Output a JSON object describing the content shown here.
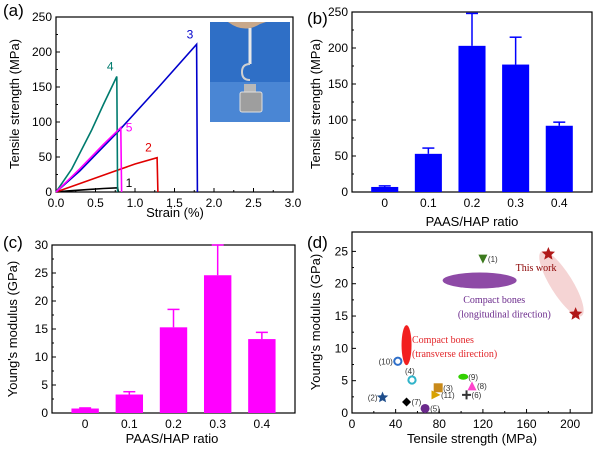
{
  "chart_data": [
    {
      "panel": "(a)",
      "type": "line",
      "xlabel": "Strain (%)",
      "ylabel": "Tensile strength (MPa)",
      "xlim": [
        0,
        3.0
      ],
      "ylim": [
        0,
        250
      ],
      "xticks": [
        "0.0",
        "0.5",
        "1.0",
        "1.5",
        "2.0",
        "2.5",
        "3.0"
      ],
      "yticks": [
        "0",
        "50",
        "100",
        "150",
        "200",
        "250"
      ],
      "series": [
        {
          "name": "1",
          "color": "#000000",
          "points": [
            [
              0,
              0
            ],
            [
              0.15,
              1.5
            ],
            [
              0.4,
              3.5
            ],
            [
              0.6,
              5
            ],
            [
              0.78,
              6
            ],
            [
              0.79,
              0
            ]
          ]
        },
        {
          "name": "2",
          "color": "#e00000",
          "points": [
            [
              0,
              0
            ],
            [
              0.3,
              12
            ],
            [
              0.7,
              28
            ],
            [
              1.0,
              40
            ],
            [
              1.28,
              49
            ],
            [
              1.29,
              0
            ]
          ]
        },
        {
          "name": "3",
          "color": "#0000cc",
          "points": [
            [
              0,
              0
            ],
            [
              0.3,
              30
            ],
            [
              0.8,
              88
            ],
            [
              1.3,
              150
            ],
            [
              1.78,
              211
            ],
            [
              1.79,
              0
            ]
          ]
        },
        {
          "name": "4",
          "color": "#007b6e",
          "points": [
            [
              0,
              0
            ],
            [
              0.2,
              33
            ],
            [
              0.45,
              88
            ],
            [
              0.6,
              125
            ],
            [
              0.77,
              165
            ],
            [
              0.78,
              0
            ]
          ]
        },
        {
          "name": "5",
          "color": "#ff00ff",
          "points": [
            [
              0,
              0
            ],
            [
              0.3,
              33
            ],
            [
              0.6,
              68
            ],
            [
              0.82,
              92
            ],
            [
              0.83,
              0
            ]
          ]
        }
      ]
    },
    {
      "panel": "(b)",
      "type": "bar",
      "xlabel": "PAAS/HAP ratio",
      "ylabel": "Tensile strength (MPa)",
      "categories": [
        "0",
        "0.1",
        "0.2",
        "0.3",
        "0.4"
      ],
      "values": [
        7,
        53,
        203,
        177,
        92
      ],
      "errors": [
        1.5,
        8,
        45,
        38,
        5
      ],
      "ylim": [
        0,
        250
      ],
      "yticks": [
        "0",
        "50",
        "100",
        "150",
        "200",
        "250"
      ],
      "color": "#0000ff"
    },
    {
      "panel": "(c)",
      "type": "bar",
      "xlabel": "PAAS/HAP ratio",
      "ylabel": "Young's modulus (GPa)",
      "categories": [
        "0",
        "0.1",
        "0.2",
        "0.3",
        "0.4"
      ],
      "values": [
        0.8,
        3.3,
        15.3,
        24.6,
        13.2
      ],
      "errors": [
        0.1,
        0.5,
        3.2,
        5.4,
        1.2
      ],
      "ylim": [
        0,
        30
      ],
      "yticks": [
        "0",
        "5",
        "10",
        "15",
        "20",
        "25",
        "30"
      ],
      "color": "#ff00ff"
    },
    {
      "panel": "(d)",
      "type": "scatter",
      "xlabel": "Tensile strength (MPa)",
      "ylabel": "Young's modulus (GPa)",
      "xlim": [
        0,
        220
      ],
      "ylim": [
        0,
        28
      ],
      "xticks": [
        "0",
        "40",
        "80",
        "120",
        "160",
        "200"
      ],
      "yticks": [
        "0",
        "5",
        "10",
        "15",
        "20",
        "25"
      ],
      "points": [
        {
          "label": "(1)",
          "x": 120,
          "y": 23.8,
          "marker": "triangle-down",
          "color": "#3c7a1e"
        },
        {
          "label": "(2)",
          "x": 28,
          "y": 2.4,
          "marker": "star",
          "color": "#1f4e8c"
        },
        {
          "label": "(3)",
          "x": 79,
          "y": 3.9,
          "marker": "square",
          "color": "#c98a1a"
        },
        {
          "label": "(4)",
          "x": 55,
          "y": 5.1,
          "marker": "ring",
          "color": "#2fb3c9"
        },
        {
          "label": "(5)",
          "x": 67,
          "y": 0.7,
          "marker": "circle",
          "color": "#6b2a8c"
        },
        {
          "label": "(6)",
          "x": 105,
          "y": 2.8,
          "marker": "cross",
          "color": "#333333"
        },
        {
          "label": "(7)",
          "x": 50,
          "y": 1.7,
          "marker": "diamond",
          "color": "#000000"
        },
        {
          "label": "(8)",
          "x": 110,
          "y": 4.2,
          "marker": "triangle-up",
          "color": "#ff44cc"
        },
        {
          "label": "(9)",
          "x": 102,
          "y": 5.6,
          "marker": "ellipse",
          "color": "#32d000"
        },
        {
          "label": "(10)",
          "x": 42,
          "y": 8.0,
          "marker": "ring",
          "color": "#2f6fc9"
        },
        {
          "label": "(11)",
          "x": 77,
          "y": 2.8,
          "marker": "triangle-right",
          "color": "#d8a200"
        }
      ],
      "this_work": [
        {
          "x": 180,
          "y": 24.6
        },
        {
          "x": 205,
          "y": 15.3
        }
      ],
      "annotations": {
        "this_work": "This work",
        "compact_long_1": "Compact bones",
        "compact_long_2": "(longitudinal direction)",
        "compact_trans_1": "Compact bones",
        "compact_trans_2": "(transverse direction)"
      }
    }
  ]
}
